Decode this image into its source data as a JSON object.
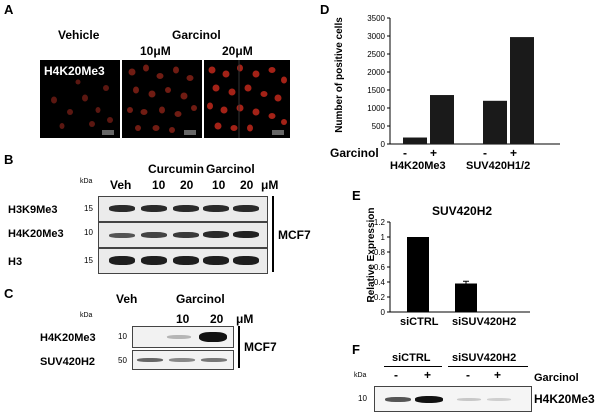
{
  "panel_a": {
    "label": "A",
    "vehicle": "Vehicle",
    "garcinol": "Garcinol",
    "dose1": "10μM",
    "dose2": "20μM",
    "stain": "H4K20Me3"
  },
  "panel_b": {
    "label": "B",
    "kda": "kDa",
    "veh": "Veh",
    "curcumin": "Curcumin",
    "garcinol": "Garcinol",
    "doses": [
      "10",
      "20",
      "10",
      "20"
    ],
    "unit": "μM",
    "rows": [
      {
        "name": "H3K9Me3",
        "kda": "15"
      },
      {
        "name": "H4K20Me3",
        "kda": "10"
      },
      {
        "name": "H3",
        "kda": "15"
      }
    ],
    "cell_line": "MCF7"
  },
  "panel_c": {
    "label": "C",
    "kda": "kDa",
    "veh": "Veh",
    "garcinol": "Garcinol",
    "doses": [
      "10",
      "20"
    ],
    "unit": "μM",
    "rows": [
      {
        "name": "H4K20Me3",
        "kda": "10"
      },
      {
        "name": "SUV420H2",
        "kda": "50"
      }
    ],
    "cell_line": "MCF7"
  },
  "panel_d": {
    "label": "D",
    "ylabel": "Number of positive cells",
    "treatment_label": "Garcinol",
    "signs": [
      "-",
      "+",
      "-",
      "+"
    ],
    "groups": [
      "H4K20Me3",
      "SUV420H1/2"
    ]
  },
  "panel_e": {
    "label": "E",
    "title": "SUV420H2",
    "ylabel": "Relative Expression",
    "categories": [
      "siCTRL",
      "siSUV420H2"
    ]
  },
  "panel_f": {
    "label": "F",
    "kda": "kDa",
    "kda_marker": "10",
    "group1": "siCTRL",
    "group2": "siSUV420H2",
    "signs": [
      "-",
      "+",
      "-",
      "+"
    ],
    "treatment_label": "Garcinol",
    "row": "H4K20Me3"
  },
  "chart_data": [
    {
      "type": "bar",
      "categories": [
        "H4K20Me3 -",
        "H4K20Me3 +",
        "SUV420H1/2 -",
        "SUV420H1/2 +"
      ],
      "values": [
        180,
        1360,
        1200,
        2970
      ],
      "ylabel": "Number of positive cells",
      "ylim": [
        0,
        3500
      ],
      "yticks": [
        0,
        500,
        1000,
        1500,
        2000,
        2500,
        3000,
        3500
      ],
      "colors": [
        "#1a1a1a"
      ]
    },
    {
      "type": "bar",
      "title": "SUV420H2",
      "categories": [
        "siCTRL",
        "siSUV420H2"
      ],
      "values": [
        1.0,
        0.38
      ],
      "errors": [
        0,
        0.03
      ],
      "ylabel": "Relative Expression",
      "ylim": [
        0,
        1.2
      ],
      "yticks": [
        0,
        0.2,
        0.4,
        0.6,
        0.8,
        1,
        1.2
      ],
      "colors": [
        "#000000"
      ]
    }
  ]
}
